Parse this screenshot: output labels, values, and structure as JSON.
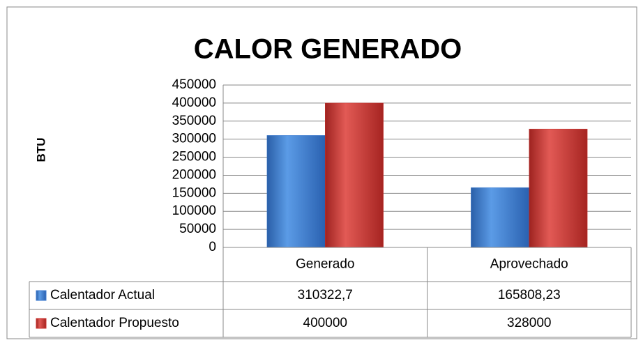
{
  "chart_data": {
    "type": "bar",
    "title": "CALOR  GENERADO",
    "y_label": "BTU",
    "categories": [
      "Generado",
      "Aprovechado"
    ],
    "series": [
      {
        "name": "Calentador Actual",
        "color": "#3d7bd0",
        "values": [
          310322.7,
          165808.23
        ],
        "value_labels": [
          "310322,7",
          "165808,23"
        ]
      },
      {
        "name": "Calentador Propuesto",
        "color": "#c9302c",
        "values": [
          400000,
          328000
        ]
      }
    ],
    "ylim": [
      0,
      450000
    ],
    "yticks": [
      0,
      50000,
      100000,
      150000,
      200000,
      250000,
      300000,
      350000,
      400000,
      450000
    ],
    "grid": true,
    "data_table": true
  }
}
